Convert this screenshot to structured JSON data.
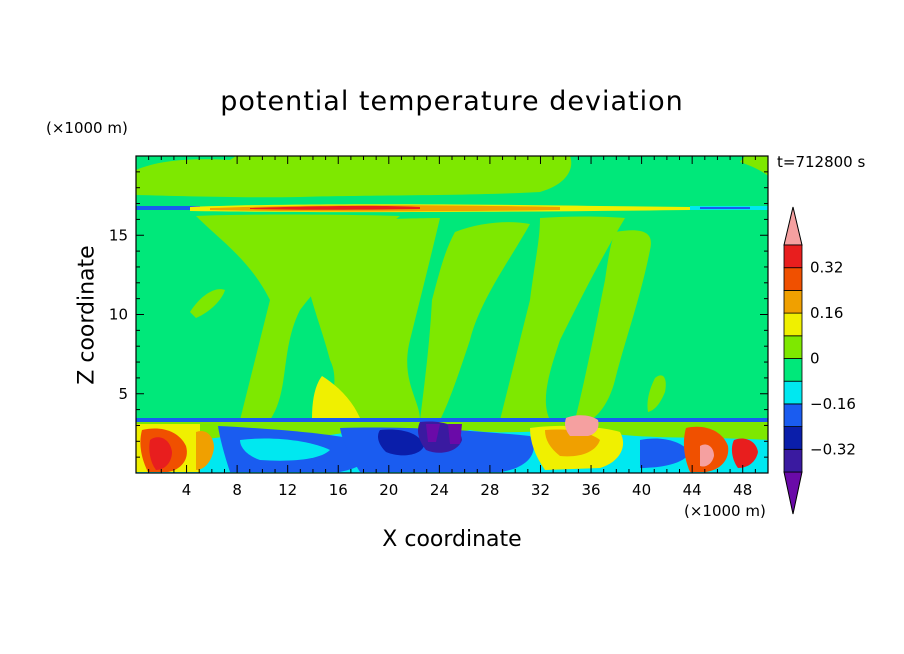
{
  "chart_data": {
    "type": "heatmap",
    "title": "potential temperature deviation",
    "xlabel": "X coordinate",
    "ylabel": "Z coordinate",
    "x_unit": "(×1000 m)",
    "z_unit": "(×1000 m)",
    "time_label": "t=712800 s",
    "x_range": [
      0,
      50
    ],
    "z_range": [
      0,
      20
    ],
    "x_ticks": [
      4,
      8,
      12,
      16,
      20,
      24,
      28,
      32,
      36,
      40,
      44,
      48
    ],
    "z_ticks": [
      5,
      10,
      15
    ],
    "colorbar": {
      "levels": [
        -0.4,
        -0.32,
        -0.24,
        -0.16,
        -0.08,
        0,
        0.08,
        0.16,
        0.24,
        0.32,
        0.4
      ],
      "labeled_ticks": [
        "0.32",
        "0.16",
        "0",
        "−0.16",
        "−0.32"
      ],
      "labeled_values": [
        0.32,
        0.16,
        0,
        -0.16,
        -0.32
      ],
      "colors": [
        "#6a0aa8",
        "#3a1aa0",
        "#0a1eaa",
        "#1a5cf0",
        "#00e8f0",
        "#00e87a",
        "#7ee800",
        "#f0f000",
        "#f0a000",
        "#f05000",
        "#e81e1e",
        "#f5a0a0"
      ],
      "extend": "both"
    },
    "features": [
      {
        "name": "background field",
        "value_range": [
          -0.08,
          0
        ]
      },
      {
        "name": "upper layer near z=16.7",
        "value_range": [
          -0.32,
          0.4
        ]
      },
      {
        "name": "boundary layer below z=3.5",
        "value_range": [
          -0.4,
          0.4
        ]
      }
    ]
  }
}
